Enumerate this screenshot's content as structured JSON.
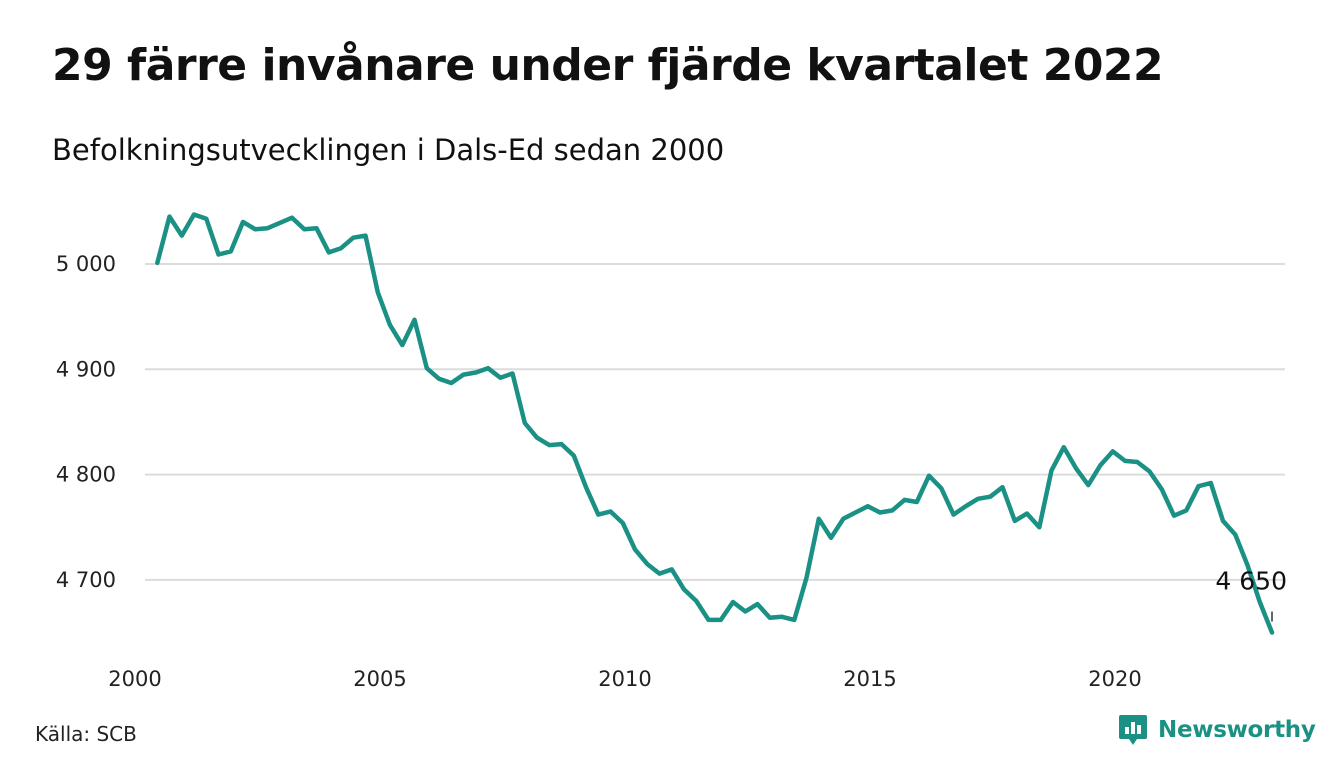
{
  "header": {
    "title": "29 färre invånare under fjärde kvartalet 2022",
    "subtitle": "Befolkningsutvecklingen i Dals-Ed sedan 2000"
  },
  "footer": {
    "source": "Källa: SCB",
    "brand": "Newsworthy",
    "brand_icon": "newsworthy-logo-icon",
    "brand_color": "#1a9184"
  },
  "chart_data": {
    "type": "line",
    "title": "29 färre invånare under fjärde kvartalet 2022",
    "subtitle": "Befolkningsutvecklingen i Dals-Ed sedan 2000",
    "xlabel": "",
    "ylabel": "",
    "xlim": [
      2000.0,
      2023.25
    ],
    "ylim": [
      4640,
      5060
    ],
    "y_ticks": [
      {
        "value": 4700,
        "label": "4 700"
      },
      {
        "value": 4800,
        "label": "4 800"
      },
      {
        "value": 4900,
        "label": "4 900"
      },
      {
        "value": 5000,
        "label": "5 000"
      }
    ],
    "x_ticks": [
      {
        "value": 2000,
        "label": "2000"
      },
      {
        "value": 2005,
        "label": "2005"
      },
      {
        "value": 2010,
        "label": "2010"
      },
      {
        "value": 2015,
        "label": "2015"
      },
      {
        "value": 2020,
        "label": "2020"
      }
    ],
    "grid": true,
    "line_color": "#1a9184",
    "series": [
      {
        "values": [
          [
            2000.25,
            5001
          ],
          [
            2000.5,
            5045
          ],
          [
            2000.75,
            5027
          ],
          [
            2001.0,
            5047
          ],
          [
            2001.25,
            5043
          ],
          [
            2001.5,
            5009
          ],
          [
            2001.75,
            5012
          ],
          [
            2002.0,
            5040
          ],
          [
            2002.25,
            5033
          ],
          [
            2002.5,
            5034
          ],
          [
            2002.75,
            5039
          ],
          [
            2003.0,
            5044
          ],
          [
            2003.25,
            5033
          ],
          [
            2003.5,
            5034
          ],
          [
            2003.75,
            5011
          ],
          [
            2004.0,
            5015
          ],
          [
            2004.25,
            5025
          ],
          [
            2004.5,
            5027
          ],
          [
            2004.75,
            4973
          ],
          [
            2005.0,
            4942
          ],
          [
            2005.25,
            4923
          ],
          [
            2005.5,
            4947
          ],
          [
            2005.75,
            4901
          ],
          [
            2006.0,
            4891
          ],
          [
            2006.25,
            4887
          ],
          [
            2006.5,
            4895
          ],
          [
            2006.75,
            4897
          ],
          [
            2007.0,
            4901
          ],
          [
            2007.25,
            4892
          ],
          [
            2007.5,
            4896
          ],
          [
            2007.75,
            4849
          ],
          [
            2008.0,
            4835
          ],
          [
            2008.25,
            4828
          ],
          [
            2008.5,
            4829
          ],
          [
            2008.75,
            4818
          ],
          [
            2009.0,
            4788
          ],
          [
            2009.25,
            4762
          ],
          [
            2009.5,
            4765
          ],
          [
            2009.75,
            4754
          ],
          [
            2010.0,
            4729
          ],
          [
            2010.25,
            4715
          ],
          [
            2010.5,
            4706
          ],
          [
            2010.75,
            4710
          ],
          [
            2011.0,
            4691
          ],
          [
            2011.25,
            4680
          ],
          [
            2011.5,
            4662
          ],
          [
            2011.75,
            4662
          ],
          [
            2012.0,
            4679
          ],
          [
            2012.25,
            4670
          ],
          [
            2012.5,
            4677
          ],
          [
            2012.75,
            4664
          ],
          [
            2013.0,
            4665
          ],
          [
            2013.25,
            4662
          ],
          [
            2013.5,
            4702
          ],
          [
            2013.75,
            4758
          ],
          [
            2014.0,
            4740
          ],
          [
            2014.25,
            4758
          ],
          [
            2014.5,
            4764
          ],
          [
            2014.75,
            4770
          ],
          [
            2015.0,
            4764
          ],
          [
            2015.25,
            4766
          ],
          [
            2015.5,
            4776
          ],
          [
            2015.75,
            4774
          ],
          [
            2016.0,
            4799
          ],
          [
            2016.25,
            4787
          ],
          [
            2016.5,
            4762
          ],
          [
            2016.75,
            4770
          ],
          [
            2017.0,
            4777
          ],
          [
            2017.25,
            4779
          ],
          [
            2017.5,
            4788
          ],
          [
            2017.75,
            4756
          ],
          [
            2018.0,
            4763
          ],
          [
            2018.25,
            4750
          ],
          [
            2018.5,
            4804
          ],
          [
            2018.75,
            4826
          ],
          [
            2019.0,
            4806
          ],
          [
            2019.25,
            4790
          ],
          [
            2019.5,
            4809
          ],
          [
            2019.75,
            4822
          ],
          [
            2020.0,
            4813
          ],
          [
            2020.25,
            4812
          ],
          [
            2020.5,
            4803
          ],
          [
            2020.75,
            4786
          ],
          [
            2021.0,
            4761
          ],
          [
            2021.25,
            4766
          ],
          [
            2021.5,
            4789
          ],
          [
            2021.75,
            4792
          ],
          [
            2022.0,
            4756
          ],
          [
            2022.25,
            4743
          ],
          [
            2022.5,
            4714
          ],
          [
            2022.75,
            4679
          ],
          [
            2023.0,
            4650
          ]
        ]
      }
    ],
    "annotations": [
      {
        "label": "4 650",
        "x": 2023.0,
        "y": 4650
      }
    ]
  }
}
